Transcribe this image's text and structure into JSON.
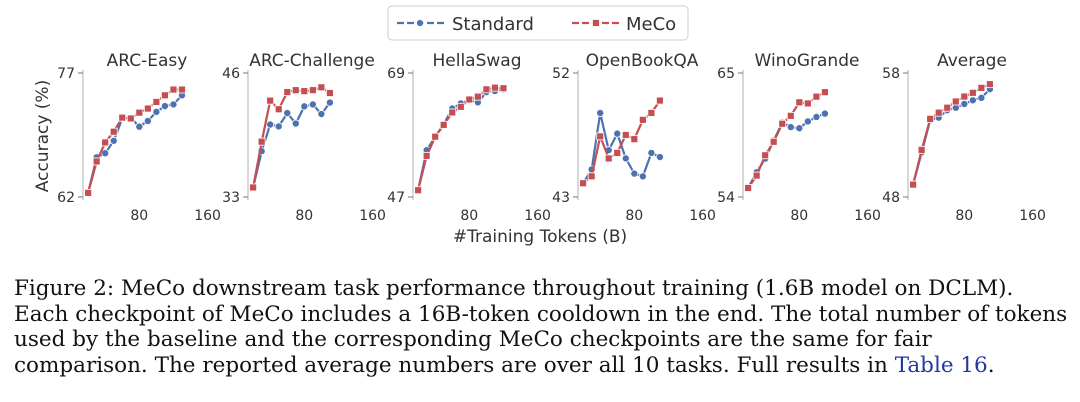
{
  "chart_data": {
    "type": "line",
    "y_axis_label": "Accuracy (%)",
    "x_axis_label": "#Training Tokens (B)",
    "x": [
      20,
      30,
      40,
      50,
      60,
      70,
      80,
      90,
      100,
      110,
      120,
      130,
      140,
      150,
      160
    ],
    "x_ticks": [
      80,
      160
    ],
    "x_range": [
      14,
      164
    ],
    "legend": [
      {
        "name": "Standard",
        "color": "#4c72b0",
        "marker": "circle"
      },
      {
        "name": "MeCo",
        "color": "#c44e52",
        "marker": "square"
      }
    ],
    "panels": [
      {
        "title": "ARC-Easy",
        "ylim": [
          62,
          77
        ],
        "y_ticks": [
          62,
          77
        ],
        "series": [
          {
            "name": "Standard",
            "values": [
              62.5,
              66.8,
              67.3,
              68.8,
              71.5,
              71.6,
              70.5,
              71.2,
              72.3,
              73.0,
              73.2,
              74.3
            ]
          },
          {
            "name": "MeCo",
            "values": [
              62.5,
              66.3,
              68.6,
              69.9,
              71.6,
              71.5,
              72.2,
              72.7,
              73.5,
              74.3,
              75.0,
              75.0
            ]
          }
        ]
      },
      {
        "title": "ARC-Challenge",
        "ylim": [
          33,
          46
        ],
        "y_ticks": [
          33,
          46
        ],
        "series": [
          {
            "name": "Standard",
            "values": [
              34.0,
              37.8,
              40.6,
              40.4,
              41.8,
              40.7,
              42.5,
              42.7,
              41.7,
              42.9
            ]
          },
          {
            "name": "MeCo",
            "values": [
              34.0,
              38.8,
              43.1,
              42.2,
              44.0,
              44.2,
              44.1,
              44.2,
              44.5,
              43.9
            ]
          }
        ]
      },
      {
        "title": "HellaSwag",
        "ylim": [
          47,
          69
        ],
        "y_ticks": [
          47,
          69
        ],
        "series": [
          {
            "name": "Standard",
            "values": [
              48.2,
              55.3,
              57.7,
              59.9,
              62.7,
              63.6,
              64.2,
              63.8,
              65.6,
              65.8,
              66.1
            ]
          },
          {
            "name": "MeCo",
            "values": [
              48.2,
              54.3,
              57.7,
              59.8,
              62.0,
              63.0,
              64.3,
              64.8,
              66.1,
              66.4,
              66.3
            ]
          }
        ]
      },
      {
        "title": "OpenBookQA",
        "ylim": [
          43,
          52
        ],
        "y_ticks": [
          43,
          52
        ],
        "series": [
          {
            "name": "Standard",
            "values": [
              44.0,
              45.0,
              49.1,
              46.4,
              47.6,
              45.8,
              44.7,
              44.5,
              46.2,
              45.9
            ]
          },
          {
            "name": "MeCo",
            "values": [
              44.0,
              44.5,
              47.4,
              45.8,
              46.2,
              47.5,
              47.2,
              48.6,
              49.1,
              50.0
            ]
          }
        ]
      },
      {
        "title": "WinoGrande",
        "ylim": [
          54,
          65
        ],
        "y_ticks": [
          54,
          65
        ],
        "series": [
          {
            "name": "Standard",
            "values": [
              54.8,
              56.2,
              57.4,
              59.0,
              60.6,
              60.2,
              60.1,
              60.7,
              61.1,
              61.4
            ]
          },
          {
            "name": "MeCo",
            "values": [
              54.8,
              55.9,
              57.7,
              58.9,
              60.5,
              61.2,
              62.4,
              62.3,
              62.9,
              63.3
            ]
          }
        ]
      },
      {
        "title": "Average",
        "ylim": [
          48,
          58
        ],
        "y_ticks": [
          48,
          58
        ],
        "series": [
          {
            "name": "Standard",
            "values": [
              49.0,
              51.6,
              54.2,
              54.4,
              55.0,
              55.2,
              55.5,
              55.8,
              56.0,
              56.7
            ]
          },
          {
            "name": "MeCo",
            "values": [
              49.0,
              51.8,
              54.3,
              54.8,
              55.2,
              55.7,
              56.1,
              56.4,
              56.8,
              57.1
            ]
          }
        ]
      }
    ]
  },
  "caption": {
    "text": "Figure 2: MeCo downstream task performance throughout training (1.6B model on DCLM). Each checkpoint of MeCo includes a 16B-token cooldown in the end. The total number of tokens used by the baseline and the corresponding MeCo checkpoints are the same for fair comparison. The reported average numbers are over all 10 tasks. Full results in ",
    "link": "Table 16",
    "end": "."
  }
}
